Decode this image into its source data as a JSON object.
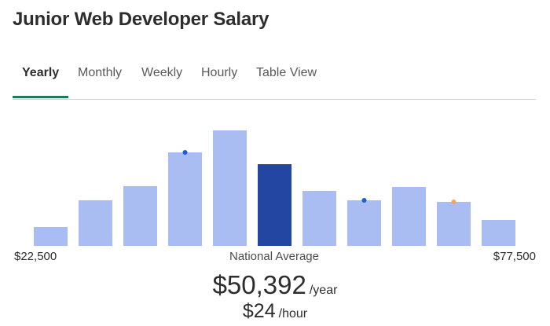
{
  "page": {
    "title": "Junior Web Developer Salary"
  },
  "tabs": [
    {
      "label": "Yearly",
      "active": true
    },
    {
      "label": "Monthly",
      "active": false
    },
    {
      "label": "Weekly",
      "active": false
    },
    {
      "label": "Hourly",
      "active": false
    },
    {
      "label": "Table View",
      "active": false
    }
  ],
  "summary": {
    "min_label": "$22,500",
    "max_label": "$77,500",
    "center_label": "National Average",
    "yearly_amount": "$50,392",
    "yearly_unit": "/year",
    "hourly_amount": "$24",
    "hourly_unit": "/hour"
  },
  "colors": {
    "bar": "#aabdf2",
    "bar_highlight": "#2446a3",
    "dot_blue": "#1a5fd6",
    "dot_orange": "#f2a65a",
    "tab_underline": "#1f7a5a"
  },
  "chart_data": {
    "type": "bar",
    "title": "",
    "xlabel": "",
    "ylabel": "",
    "x_range_labels": [
      "$22,500",
      "$77,500"
    ],
    "values": [
      24,
      58,
      76,
      119,
      147,
      104,
      70,
      58,
      75,
      56,
      33
    ],
    "highlight_index": 5,
    "markers": [
      {
        "bar_index": 3,
        "color": "blue"
      },
      {
        "bar_index": 7,
        "color": "blue"
      },
      {
        "bar_index": 9,
        "color": "orange"
      }
    ],
    "ylim": [
      0,
      147
    ],
    "grid": false,
    "legend": "none"
  }
}
